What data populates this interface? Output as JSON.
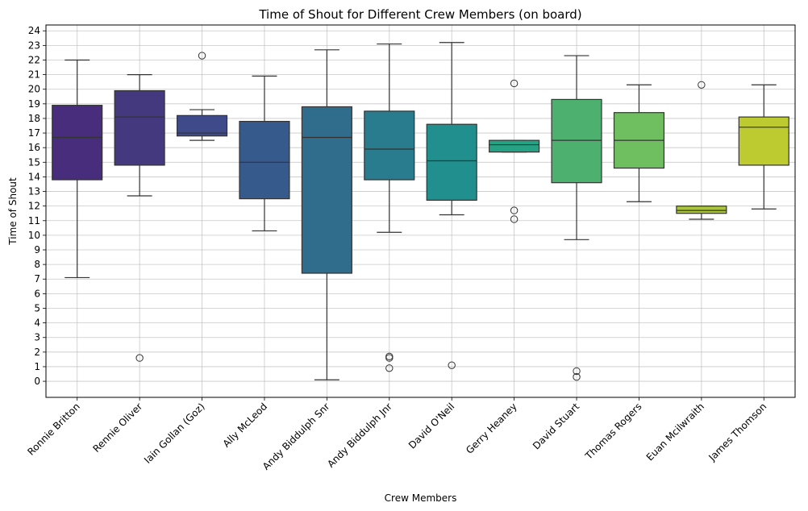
{
  "chart_data": {
    "type": "box",
    "title": "Time of Shout for Different Crew Members (on board)",
    "xlabel": "Crew Members",
    "ylabel": "Time of Shout",
    "ylim": [
      -1.1,
      24.4
    ],
    "yticks": [
      0,
      1,
      2,
      3,
      4,
      5,
      6,
      7,
      8,
      9,
      10,
      11,
      12,
      13,
      14,
      15,
      16,
      17,
      18,
      19,
      20,
      21,
      22,
      23,
      24
    ],
    "grid": true,
    "categories": [
      "Ronnie Britton",
      "Rennie Oliver",
      "Iain Gollan (Goz)",
      "Ally McLeod",
      "Andy Biddulph Snr",
      "Andy Biddulph Jnr",
      "David O'Neil",
      "Gerry Heaney",
      "David Stuart",
      "Thomas Rogers",
      "Euan Mcilwraith",
      "James Thomson"
    ],
    "boxes": [
      {
        "name": "Ronnie Britton",
        "whisker_low": 7.1,
        "q1": 13.8,
        "median": 16.7,
        "q3": 18.9,
        "whisker_high": 22.0,
        "outliers": [],
        "color": "#472d7b"
      },
      {
        "name": "Rennie Oliver",
        "whisker_low": 12.7,
        "q1": 14.8,
        "median": 18.1,
        "q3": 19.9,
        "whisker_high": 21.0,
        "outliers": [
          1.6
        ],
        "color": "#44397f"
      },
      {
        "name": "Iain Gollan (Goz)",
        "whisker_low": 16.5,
        "q1": 16.8,
        "median": 17.0,
        "q3": 18.2,
        "whisker_high": 18.6,
        "outliers": [
          22.3
        ],
        "color": "#3e4a89"
      },
      {
        "name": "Ally McLeod",
        "whisker_low": 10.3,
        "q1": 12.5,
        "median": 15.0,
        "q3": 17.8,
        "whisker_high": 20.9,
        "outliers": [],
        "color": "#375a8c"
      },
      {
        "name": "Andy Biddulph Snr",
        "whisker_low": 0.1,
        "q1": 7.4,
        "median": 16.7,
        "q3": 18.8,
        "whisker_high": 22.7,
        "outliers": [],
        "color": "#306d8c"
      },
      {
        "name": "Andy Biddulph Jnr",
        "whisker_low": 10.2,
        "q1": 13.8,
        "median": 15.9,
        "q3": 18.5,
        "whisker_high": 23.1,
        "outliers": [
          1.7,
          1.6,
          0.9
        ],
        "color": "#297b8e"
      },
      {
        "name": "David O'Neil",
        "whisker_low": 11.4,
        "q1": 12.4,
        "median": 15.1,
        "q3": 17.6,
        "whisker_high": 23.2,
        "outliers": [
          1.1
        ],
        "color": "#218f8d"
      },
      {
        "name": "Gerry Heaney",
        "whisker_low": 15.7,
        "q1": 15.7,
        "median": 16.2,
        "q3": 16.5,
        "whisker_high": 16.5,
        "outliers": [
          20.4,
          11.7,
          11.1
        ],
        "color": "#25a284"
      },
      {
        "name": "David Stuart",
        "whisker_low": 9.7,
        "q1": 13.6,
        "median": 16.5,
        "q3": 19.3,
        "whisker_high": 22.3,
        "outliers": [
          0.7,
          0.3
        ],
        "color": "#4eb06e"
      },
      {
        "name": "Thomas Rogers",
        "whisker_low": 12.3,
        "q1": 14.6,
        "median": 16.5,
        "q3": 18.4,
        "whisker_high": 20.3,
        "outliers": [],
        "color": "#6fbf61"
      },
      {
        "name": "Euan Mcilwraith",
        "whisker_low": 11.1,
        "q1": 11.5,
        "median": 11.7,
        "q3": 12.0,
        "whisker_high": 12.0,
        "outliers": [
          20.3
        ],
        "color": "#a8c733"
      },
      {
        "name": "James Thomson",
        "whisker_low": 11.8,
        "q1": 14.8,
        "median": 17.4,
        "q3": 18.1,
        "whisker_high": 20.3,
        "outliers": [],
        "color": "#bdca30"
      }
    ]
  }
}
